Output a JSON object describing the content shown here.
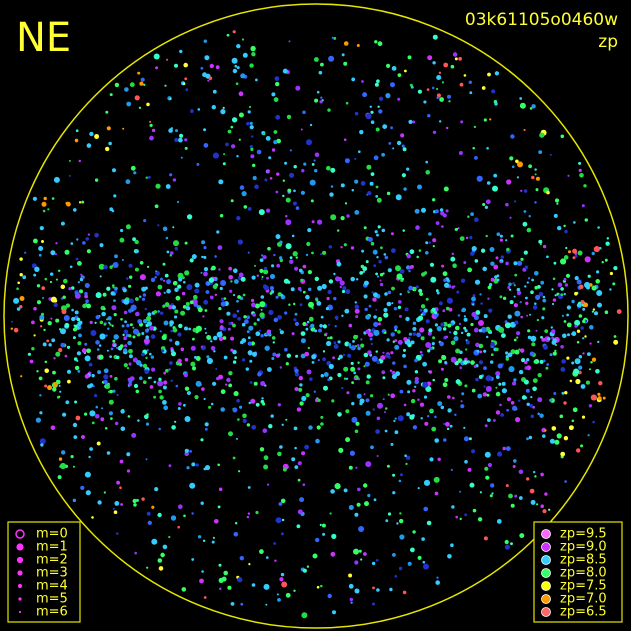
{
  "header": {
    "direction": "NE",
    "frame_id": "03k61105o0460w",
    "mode": "zp"
  },
  "magnitude_legend": [
    "m=0",
    "m=1",
    "m=2",
    "m=3",
    "m=4",
    "m=5",
    "m=6"
  ],
  "zp_legend": [
    "zp=9.5",
    "zp=9.0",
    "zp=8.5",
    "zp=8.0",
    "zp=7.5",
    "zp=7.0",
    "zp=6.5"
  ]
}
